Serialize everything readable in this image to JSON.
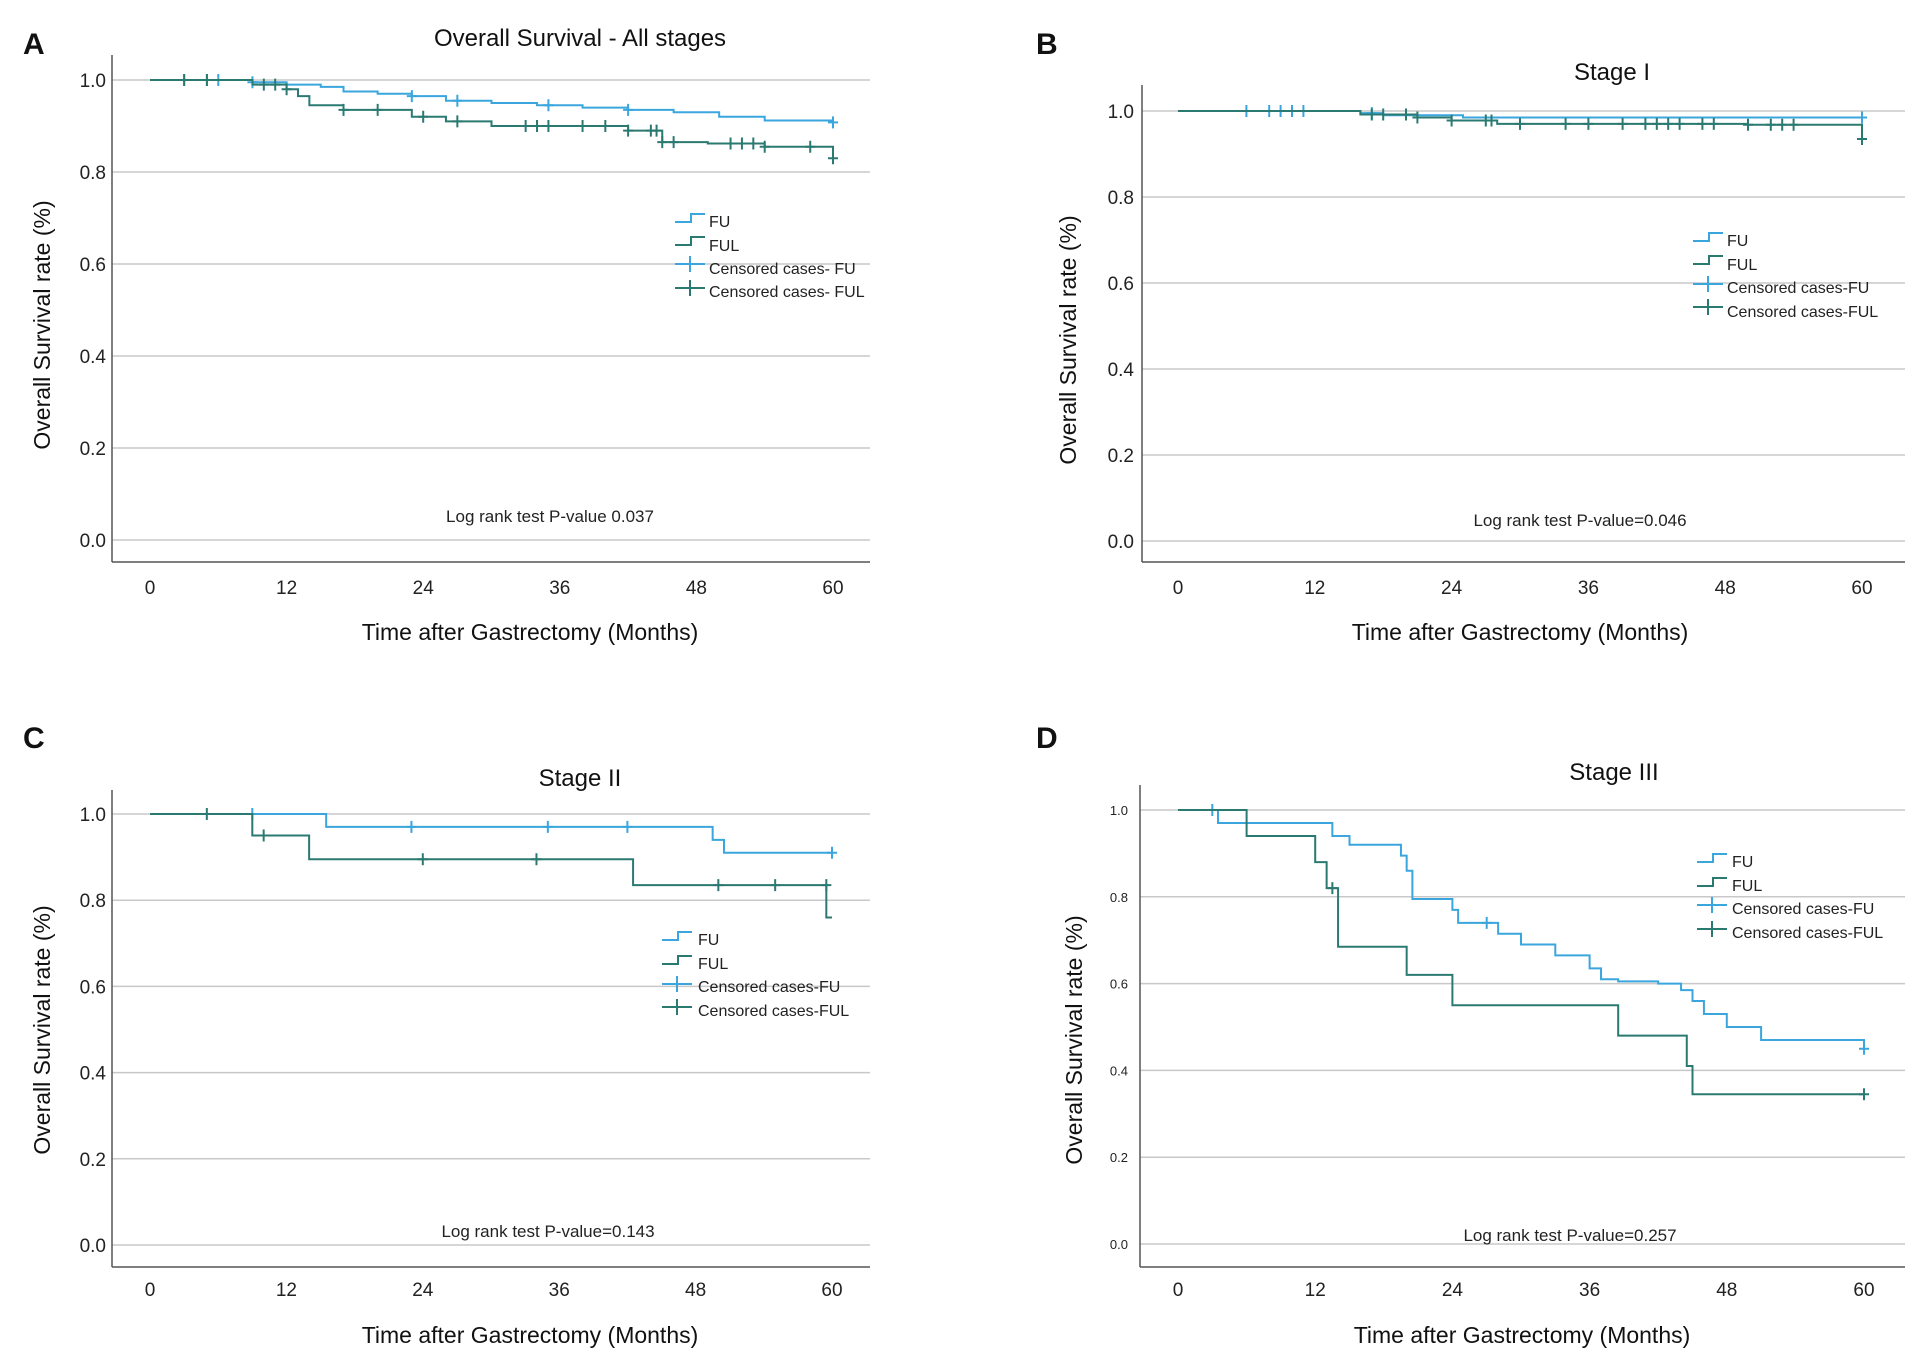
{
  "colors": {
    "FU": "#3aa6dd",
    "FUL": "#2b7a72",
    "grid": "#c8c8c8",
    "axis": "#555555"
  },
  "chart_data": [
    {
      "panel": "A",
      "type": "line",
      "title": "Overall Survival - All stages",
      "xlabel": "Time after Gastrectomy (Months)",
      "ylabel": "Overall Survival rate (%)",
      "xlim": [
        0,
        60
      ],
      "ylim": [
        0,
        1
      ],
      "xticks": [
        "0",
        "12",
        "24",
        "36",
        "48",
        "60"
      ],
      "yticks": [
        "0.0",
        "0.2",
        "0.4",
        "0.6",
        "0.8",
        "1.0"
      ],
      "legend": [
        "FU",
        "FUL",
        "Censored cases- FU",
        "Censored cases- FUL"
      ],
      "annotation": "Log rank test P-value 0.037",
      "series": [
        {
          "name": "FU",
          "x": [
            0,
            9,
            12,
            15,
            17,
            20,
            23,
            26,
            30,
            34,
            38,
            42,
            46,
            50,
            54,
            60
          ],
          "y": [
            1.0,
            0.995,
            0.99,
            0.985,
            0.975,
            0.97,
            0.965,
            0.955,
            0.95,
            0.945,
            0.94,
            0.935,
            0.93,
            0.92,
            0.912,
            0.908
          ],
          "censored_x": [
            3,
            5,
            6,
            9,
            23,
            27,
            35,
            42,
            60
          ],
          "censored_y": [
            1.0,
            1.0,
            1.0,
            0.995,
            0.965,
            0.955,
            0.945,
            0.935,
            0.908
          ]
        },
        {
          "name": "FUL",
          "x": [
            0,
            9,
            12,
            13,
            14,
            17,
            23,
            26,
            30,
            42,
            45,
            49,
            54,
            60
          ],
          "y": [
            1.0,
            0.99,
            0.98,
            0.965,
            0.945,
            0.935,
            0.92,
            0.91,
            0.9,
            0.89,
            0.865,
            0.862,
            0.855,
            0.83
          ],
          "censored_x": [
            3,
            5,
            10,
            11,
            12,
            17,
            20,
            24,
            27,
            33,
            34,
            35,
            38,
            40,
            42,
            44,
            44.5,
            45,
            46,
            51,
            52,
            53,
            54,
            58,
            60
          ],
          "censored_y": [
            1.0,
            1.0,
            0.99,
            0.99,
            0.98,
            0.935,
            0.935,
            0.92,
            0.91,
            0.9,
            0.9,
            0.9,
            0.9,
            0.9,
            0.89,
            0.89,
            0.89,
            0.865,
            0.865,
            0.862,
            0.862,
            0.862,
            0.855,
            0.855,
            0.83
          ]
        }
      ]
    },
    {
      "panel": "B",
      "type": "line",
      "title": "Stage I",
      "xlabel": "Time after Gastrectomy (Months)",
      "ylabel": "Overall Survival rate (%)",
      "xlim": [
        0,
        60
      ],
      "ylim": [
        0,
        1
      ],
      "xticks": [
        "0",
        "12",
        "24",
        "36",
        "48",
        "60"
      ],
      "yticks": [
        "0.0",
        "0.2",
        "0.4",
        "0.6",
        "0.8",
        "1.0"
      ],
      "legend": [
        "FU",
        "FUL",
        "Censored cases-FU",
        "Censored cases-FUL"
      ],
      "annotation": "Log rank test P-value=0.046",
      "series": [
        {
          "name": "FU",
          "x": [
            0,
            16,
            18,
            25,
            60
          ],
          "y": [
            1.0,
            0.995,
            0.99,
            0.985,
            0.985
          ],
          "censored_x": [
            6,
            8,
            9,
            10,
            11,
            17,
            60
          ],
          "censored_y": [
            1.0,
            1.0,
            1.0,
            1.0,
            1.0,
            0.995,
            0.985
          ]
        },
        {
          "name": "FUL",
          "x": [
            0,
            16,
            21,
            24,
            28,
            50,
            60
          ],
          "y": [
            1.0,
            0.992,
            0.985,
            0.978,
            0.97,
            0.968,
            0.935
          ],
          "censored_x": [
            17,
            18,
            20,
            21,
            24,
            27,
            27.5,
            30,
            34,
            36,
            39,
            41,
            42,
            43,
            44,
            46,
            47,
            50,
            52,
            53,
            54,
            60
          ],
          "censored_y": [
            0.992,
            0.992,
            0.992,
            0.985,
            0.978,
            0.978,
            0.978,
            0.97,
            0.97,
            0.97,
            0.97,
            0.97,
            0.97,
            0.97,
            0.97,
            0.97,
            0.97,
            0.968,
            0.968,
            0.968,
            0.968,
            0.935
          ]
        }
      ]
    },
    {
      "panel": "C",
      "type": "line",
      "title": "Stage II",
      "xlabel": "Time after Gastrectomy (Months)",
      "ylabel": "Overall Survival rate (%)",
      "xlim": [
        0,
        60
      ],
      "ylim": [
        0,
        1
      ],
      "xticks": [
        "0",
        "12",
        "24",
        "36",
        "48",
        "60"
      ],
      "yticks": [
        "0.0",
        "0.2",
        "0.4",
        "0.6",
        "0.8",
        "1.0"
      ],
      "legend": [
        "FU",
        "FUL",
        "Censored cases-FU",
        "Censored cases-FUL"
      ],
      "annotation": "Log rank test P-value=0.143",
      "series": [
        {
          "name": "FU",
          "x": [
            0,
            15.5,
            49.5,
            50.5,
            60
          ],
          "y": [
            1.0,
            0.97,
            0.94,
            0.91,
            0.91
          ],
          "censored_x": [
            9,
            23,
            35,
            42,
            60
          ],
          "censored_y": [
            1.0,
            0.97,
            0.97,
            0.97,
            0.91
          ]
        },
        {
          "name": "FUL",
          "x": [
            0,
            9,
            14,
            42.5,
            59.5,
            60
          ],
          "y": [
            1.0,
            0.95,
            0.895,
            0.835,
            0.76,
            0.76
          ],
          "censored_x": [
            5,
            10,
            24,
            34,
            50,
            55,
            59.5
          ],
          "censored_y": [
            1.0,
            0.95,
            0.895,
            0.895,
            0.835,
            0.835,
            0.835
          ]
        }
      ]
    },
    {
      "panel": "D",
      "type": "line",
      "title": "Stage III",
      "xlabel": "Time after Gastrectomy (Months)",
      "ylabel": "Overall Survival rate (%)",
      "xlim": [
        0,
        60
      ],
      "ylim": [
        0,
        1
      ],
      "xticks": [
        "0",
        "12",
        "24",
        "36",
        "48",
        "60"
      ],
      "yticks": [
        "0.0",
        "0.2",
        "0.4",
        "0.6",
        "0.8",
        "1.0"
      ],
      "legend": [
        "FU",
        "FUL",
        "Censored cases-FU",
        "Censored cases-FUL"
      ],
      "annotation": "Log rank test P-value=0.257",
      "series": [
        {
          "name": "FU",
          "x": [
            0,
            3.5,
            13.5,
            15,
            19.5,
            20,
            20.5,
            24,
            24.5,
            28,
            30,
            33,
            36,
            37,
            38.5,
            42,
            44,
            45,
            46,
            48,
            51,
            54,
            60
          ],
          "y": [
            1.0,
            0.97,
            0.94,
            0.92,
            0.895,
            0.86,
            0.795,
            0.77,
            0.74,
            0.715,
            0.69,
            0.665,
            0.635,
            0.61,
            0.605,
            0.6,
            0.585,
            0.56,
            0.53,
            0.5,
            0.47,
            0.47,
            0.45
          ],
          "censored_x": [
            3,
            27,
            60
          ],
          "censored_y": [
            1.0,
            0.74,
            0.45
          ]
        },
        {
          "name": "FUL",
          "x": [
            0,
            6,
            12,
            13,
            14,
            20,
            24,
            38.5,
            44.5,
            45,
            60
          ],
          "y": [
            1.0,
            0.94,
            0.88,
            0.82,
            0.685,
            0.62,
            0.55,
            0.48,
            0.41,
            0.345,
            0.345
          ],
          "censored_x": [
            13.5,
            60
          ],
          "censored_y": [
            0.82,
            0.345
          ]
        }
      ]
    }
  ]
}
